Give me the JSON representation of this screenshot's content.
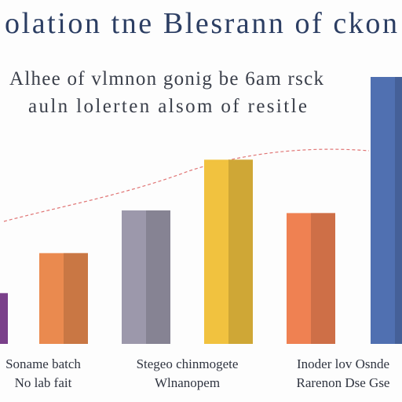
{
  "chart_data": {
    "type": "bar",
    "title": "olation tne Blesrann of ckon",
    "subtitle": [
      "Alhee of vlmnon gonig be 6am rsck",
      "auln lolerten alsom of resitle"
    ],
    "categories": [
      null,
      "Soname batch\nNo lab fait",
      null,
      "Stegeo chinmogete\nWlnanopem",
      null,
      "Inoder lov Osnde\nRarenon Dse Gse"
    ],
    "values": [
      19,
      34,
      50,
      69,
      49,
      100
    ],
    "colors": [
      "#8e4aa0",
      "#ea8a4f",
      "#9c98ab",
      "#f1c23f",
      "#ef8152",
      "#5070b1"
    ],
    "ylim": [
      0,
      100
    ]
  }
}
